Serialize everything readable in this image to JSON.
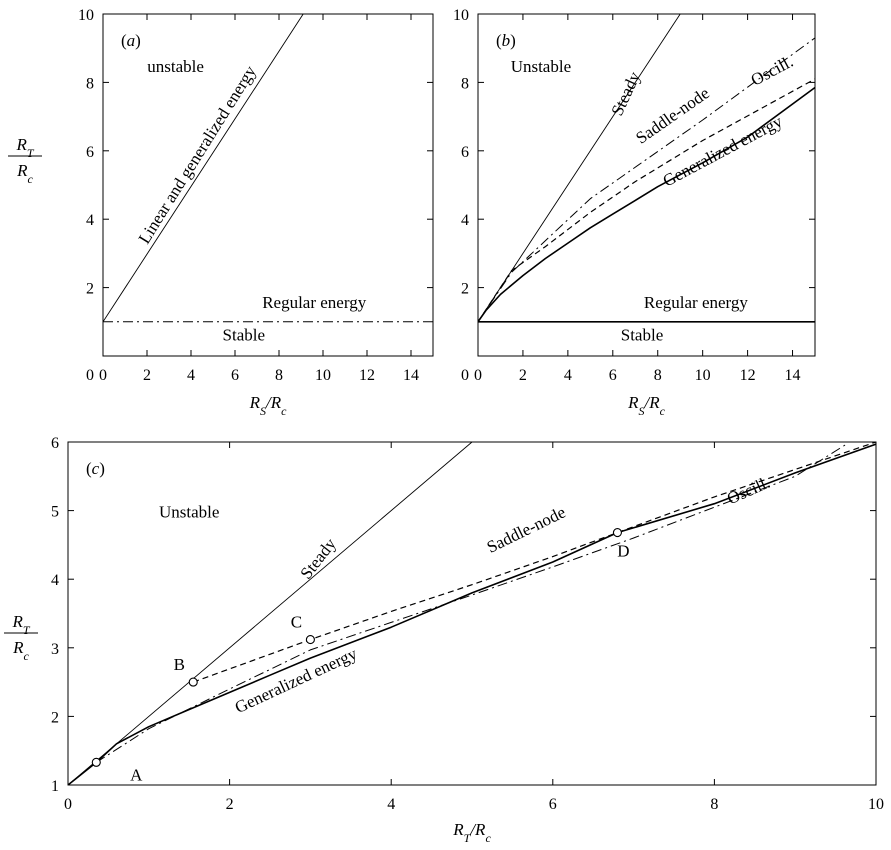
{
  "chart_data": [
    {
      "type": "line",
      "panel_label": "(a)",
      "xlabel": "R_S/R_c",
      "ylabel": {
        "num": "R_T",
        "den": "R_c"
      },
      "xlim": [
        0,
        15
      ],
      "ylim": [
        0,
        10
      ],
      "xticks": [
        0,
        2,
        4,
        6,
        8,
        10,
        12,
        14
      ],
      "yticks": [
        2,
        4,
        6,
        8,
        10
      ],
      "grid": false,
      "series": [
        {
          "name": "Linear and generalized energy",
          "style": "dotted",
          "x": [
            0,
            9.1
          ],
          "y": [
            1,
            10
          ]
        },
        {
          "name": "Regular energy",
          "style": "dashdot",
          "x": [
            0,
            15
          ],
          "y": [
            1,
            1
          ]
        }
      ],
      "annotations": [
        {
          "text": "unstable",
          "x": 3.3,
          "y": 8.3
        },
        {
          "text": "Stable",
          "x": 6.4,
          "y": 0.45
        },
        {
          "text": "Regular energy",
          "x": 9.6,
          "y": 1.4
        },
        {
          "text": "Linear and generalized energy",
          "x": 4.5,
          "y": 5.8,
          "angle": -58
        }
      ]
    },
    {
      "type": "line",
      "panel_label": "(b)",
      "xlabel": "R_S/R_c",
      "ylabel": "",
      "xlim": [
        0,
        15
      ],
      "ylim": [
        0,
        10
      ],
      "xticks": [
        0,
        2,
        4,
        6,
        8,
        10,
        12,
        14
      ],
      "yticks": [
        2,
        4,
        6,
        8,
        10
      ],
      "grid": false,
      "series": [
        {
          "name": "Steady",
          "style": "dotted",
          "x": [
            0,
            9.0
          ],
          "y": [
            1,
            10
          ]
        },
        {
          "name": "Saddle-node",
          "style": "dashdot",
          "x": [
            0,
            1.5,
            5,
            10,
            15
          ],
          "y": [
            1,
            2.45,
            4.6,
            6.9,
            9.3
          ]
        },
        {
          "name": "Oscill.",
          "style": "dashed",
          "x": [
            0,
            1.5,
            3,
            5,
            7,
            10,
            15
          ],
          "y": [
            1,
            2.5,
            3.2,
            4.2,
            5.1,
            6.3,
            8.1
          ]
        },
        {
          "name": "Generalized energy",
          "style": "solid",
          "x": [
            0,
            0.35,
            1,
            2,
            3,
            4,
            5,
            6,
            7,
            8,
            9,
            10,
            12,
            15
          ],
          "y": [
            1,
            1.33,
            1.8,
            2.35,
            2.85,
            3.3,
            3.75,
            4.15,
            4.55,
            4.95,
            5.3,
            5.65,
            6.4,
            7.85
          ]
        },
        {
          "name": "Regular energy",
          "style": "solid",
          "x": [
            0,
            15
          ],
          "y": [
            1,
            1
          ]
        }
      ],
      "annotations": [
        {
          "text": "Unstable",
          "x": 2.8,
          "y": 8.3
        },
        {
          "text": "Stable",
          "x": 7.3,
          "y": 0.45
        },
        {
          "text": "Regular energy",
          "x": 9.7,
          "y": 1.4
        },
        {
          "text": "Steady",
          "x": 6.8,
          "y": 7.6,
          "angle": -65
        },
        {
          "text": "Saddle-node",
          "x": 8.8,
          "y": 6.9,
          "angle": -35
        },
        {
          "text": "Oscill.",
          "x": 13.2,
          "y": 8.2,
          "angle": -28
        },
        {
          "text": "Generalized energy",
          "x": 11.0,
          "y": 5.85,
          "angle": -28
        }
      ]
    },
    {
      "type": "line",
      "panel_label": "(c)",
      "xlabel": "R_T/R_c",
      "ylabel": {
        "num": "R_T",
        "den": "R_c"
      },
      "xlim": [
        0,
        10
      ],
      "ylim": [
        1,
        6
      ],
      "xticks": [
        0,
        2,
        4,
        6,
        8,
        10
      ],
      "yticks": [
        1,
        2,
        3,
        4,
        5,
        6
      ],
      "grid": false,
      "series": [
        {
          "name": "Steady",
          "style": "dotted",
          "x": [
            0,
            5.0
          ],
          "y": [
            1,
            6
          ]
        },
        {
          "name": "Saddle-node",
          "style": "dashdot",
          "x": [
            0.35,
            1,
            2,
            3,
            4,
            5,
            6,
            7,
            8,
            9,
            9.65
          ],
          "y": [
            1.33,
            1.82,
            2.4,
            2.97,
            3.37,
            3.77,
            4.18,
            4.6,
            5.05,
            5.5,
            5.98
          ]
        },
        {
          "name": "Oscill.",
          "style": "dashed",
          "x": [
            1.55,
            3.0,
            4,
            5,
            6,
            6.8,
            8,
            10
          ],
          "y": [
            2.5,
            3.12,
            3.53,
            3.92,
            4.33,
            4.68,
            5.2,
            6.0
          ]
        },
        {
          "name": "Generalized energy",
          "style": "solid",
          "x": [
            0,
            0.35,
            0.6,
            1,
            1.5,
            2,
            2.5,
            3,
            4,
            5,
            6,
            6.8,
            8,
            9,
            10
          ],
          "y": [
            1,
            1.33,
            1.6,
            1.85,
            2.1,
            2.35,
            2.6,
            2.85,
            3.3,
            3.8,
            4.25,
            4.68,
            5.1,
            5.55,
            5.97
          ]
        }
      ],
      "points": [
        {
          "label": "A",
          "x": 0.35,
          "y": 1.33
        },
        {
          "label": "B",
          "x": 1.55,
          "y": 2.5
        },
        {
          "label": "C",
          "x": 3.0,
          "y": 3.12
        },
        {
          "label": "D",
          "x": 6.8,
          "y": 4.68
        }
      ],
      "annotations": [
        {
          "text": "Unstable",
          "x": 1.5,
          "y": 4.9
        },
        {
          "text": "Steady",
          "x": 3.15,
          "y": 4.25,
          "angle": -52
        },
        {
          "text": "Saddle-node",
          "x": 5.7,
          "y": 4.65,
          "angle": -26
        },
        {
          "text": "Oscill.",
          "x": 8.45,
          "y": 5.22,
          "angle": -24
        },
        {
          "text": "Generalized energy",
          "x": 2.85,
          "y": 2.45,
          "angle": -25
        }
      ]
    }
  ]
}
